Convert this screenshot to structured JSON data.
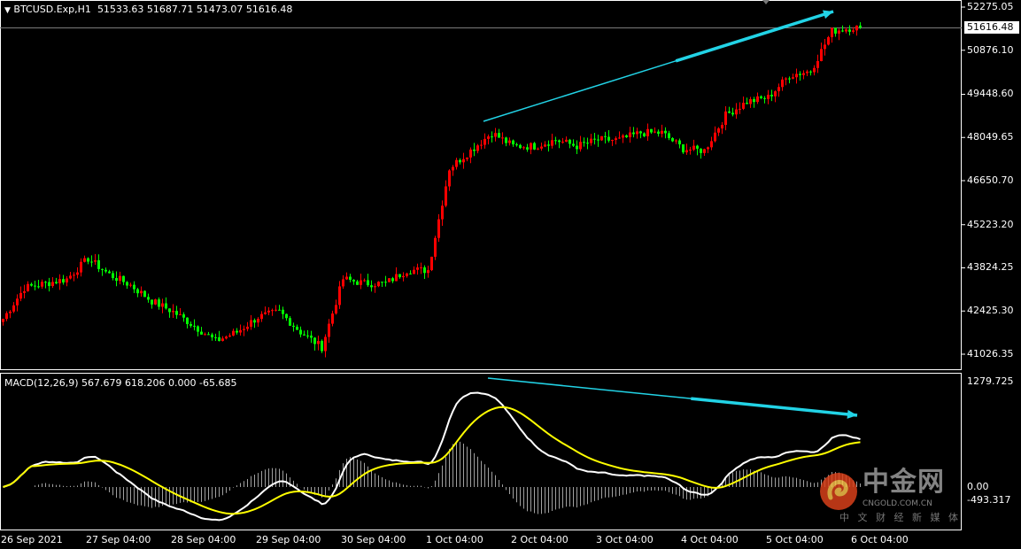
{
  "header": {
    "symbol": "BTCUSD.Exp,H1",
    "ohlc": "51533.63 51687.71 51473.07 51616.48"
  },
  "price_axis": {
    "labels": [
      "52275.05",
      "50876.10",
      "49448.60",
      "48049.65",
      "46650.70",
      "45223.20",
      "43824.25",
      "42425.30",
      "41026.35"
    ],
    "current_price": "51616.48"
  },
  "macd": {
    "title": "MACD(12,26,9) 567.679 618.206 0.000 -65.685",
    "axis_labels": [
      "1279.725",
      "0.00",
      "-493.317"
    ]
  },
  "time_axis": {
    "labels": [
      "26 Sep 2021",
      "27 Sep 04:00",
      "28 Sep 04:00",
      "29 Sep 04:00",
      "30 Sep 04:00",
      "1 Oct 04:00",
      "2 Oct 04:00",
      "3 Oct 04:00",
      "4 Oct 04:00",
      "5 Oct 04:00",
      "6 Oct 04:00"
    ]
  },
  "colors": {
    "background": "#000000",
    "bull_candle": "#ff0000",
    "bear_candle": "#00ff00",
    "macd_line": "#ffffff",
    "signal_line": "#ffff00",
    "histogram": "#a0a0a0",
    "trend_arrow": "#22d3e6"
  },
  "chart_data": {
    "type": "candlestick",
    "timeframe": "H1",
    "ylim": [
      41026.35,
      52275.05
    ],
    "approx_close_path": [
      [
        "2021-09-26 04:00",
        42173
      ],
      [
        "2021-09-26 10:00",
        43177
      ],
      [
        "2021-09-26 16:00",
        43321
      ],
      [
        "2021-09-26 22:00",
        43464
      ],
      [
        "2021-09-27 04:00",
        44124
      ],
      [
        "2021-09-27 10:00",
        43608
      ],
      [
        "2021-09-27 16:00",
        43263
      ],
      [
        "2021-09-27 22:00",
        42747
      ],
      [
        "2021-09-28 04:00",
        42402
      ],
      [
        "2021-09-28 10:00",
        41943
      ],
      [
        "2021-09-28 16:00",
        41455
      ],
      [
        "2021-09-28 22:00",
        41742
      ],
      [
        "2021-09-29 04:00",
        42230
      ],
      [
        "2021-09-29 10:00",
        42402
      ],
      [
        "2021-09-29 16:00",
        41742
      ],
      [
        "2021-09-29 22:00",
        41255
      ],
      [
        "2021-09-30 04:00",
        43464
      ],
      [
        "2021-09-30 10:00",
        43321
      ],
      [
        "2021-09-30 16:00",
        43321
      ],
      [
        "2021-09-30 22:00",
        43751
      ],
      [
        "2021-10-01 04:00",
        43751
      ],
      [
        "2021-10-01 10:00",
        47052
      ],
      [
        "2021-10-01 16:00",
        47626
      ],
      [
        "2021-10-01 22:00",
        48200
      ],
      [
        "2021-10-02 04:00",
        47769
      ],
      [
        "2021-10-02 10:00",
        47769
      ],
      [
        "2021-10-02 16:00",
        47970
      ],
      [
        "2021-10-02 22:00",
        47769
      ],
      [
        "2021-10-03 04:00",
        47970
      ],
      [
        "2021-10-03 10:00",
        47970
      ],
      [
        "2021-10-03 16:00",
        48200
      ],
      [
        "2021-10-03 22:00",
        48200
      ],
      [
        "2021-10-04 04:00",
        47683
      ],
      [
        "2021-10-04 10:00",
        47626
      ],
      [
        "2021-10-04 16:00",
        48773
      ],
      [
        "2021-10-04 22:00",
        49204
      ],
      [
        "2021-10-05 04:00",
        49347
      ],
      [
        "2021-10-05 10:00",
        50065
      ],
      [
        "2021-10-05 16:00",
        50209
      ],
      [
        "2021-10-05 22:00",
        51500
      ],
      [
        "2021-10-06 04:00",
        51616
      ],
      [
        "2021-10-06 06:00",
        51616.48
      ]
    ]
  },
  "watermark": {
    "main": "中金网",
    "domain": "CNGOLD.COM.CN",
    "slogan": "中 文 财 经 新 媒 体"
  }
}
